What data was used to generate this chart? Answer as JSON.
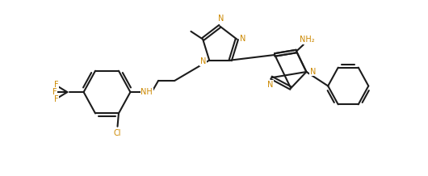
{
  "bg": "#ffffff",
  "bc": "#1c1c1c",
  "lc": "#cc8800",
  "lw": 1.5,
  "fs": 7.0,
  "figsize": [
    5.3,
    2.18
  ],
  "dpi": 100,
  "xlim": [
    -0.5,
    10.5
  ],
  "ylim": [
    -0.2,
    4.1
  ]
}
